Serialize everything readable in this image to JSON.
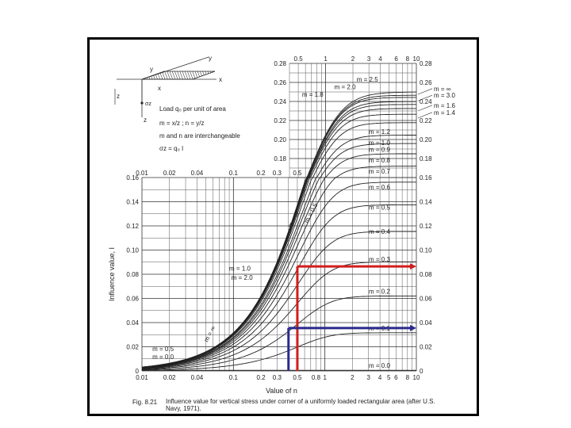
{
  "chart_data": {
    "type": "line",
    "title": "Influence value for vertical stress under corner of a uniformly loaded rectangular area (after U.S. Navy, 1971).",
    "figure_label": "Fig. 8.21",
    "xlabel": "Value of n",
    "ylabel": "Influence value, I",
    "x_scale": "log",
    "lower_panel": {
      "xlim": [
        0.01,
        10
      ],
      "ylim": [
        0,
        0.16
      ],
      "x_ticks": [
        "0.01",
        "0.02",
        "0.04",
        "0.1",
        "0.2",
        "0.3",
        "0.5",
        "0.8",
        "1",
        "2",
        "3",
        "4",
        "5",
        "6",
        "8",
        "10"
      ],
      "x_ticks_top": [
        "0.01",
        "0.02",
        "0.04",
        "0.1",
        "0.2",
        "0.3",
        "0.5"
      ],
      "y_ticks": [
        "0",
        "0.02",
        "0.04",
        "0.06",
        "0.08",
        "0.10",
        "0.12",
        "0.14",
        "0.16"
      ],
      "y_ticks_right": [
        "0",
        "0.02",
        "0.04",
        "0.06",
        "0.08",
        "0.10",
        "0.12",
        "0.14",
        "0.16",
        "0.18",
        "0.20",
        "0.22",
        "0.24",
        "0.26",
        "0.28"
      ]
    },
    "upper_panel": {
      "xlim": [
        0.4,
        10
      ],
      "ylim": [
        0.16,
        0.28
      ],
      "x_ticks_top": [
        "0.5",
        "1",
        "2",
        "3",
        "4",
        "6",
        "8",
        "10"
      ],
      "y_ticks": [
        "0.18",
        "0.20",
        "0.22",
        "0.24",
        "0.26",
        "0.28"
      ]
    },
    "series": [
      {
        "m": 0.0,
        "label": "m = 0.0",
        "asymptote": 0.0
      },
      {
        "m": 0.1,
        "label": "m = 0.1",
        "asymptote": 0.032
      },
      {
        "m": 0.2,
        "label": "m = 0.2",
        "asymptote": 0.062
      },
      {
        "m": 0.3,
        "label": "m = 0.3",
        "asymptote": 0.089
      },
      {
        "m": 0.4,
        "label": "m = 0.4",
        "asymptote": 0.112
      },
      {
        "m": 0.5,
        "label": "m = 0.5",
        "asymptote": 0.132
      },
      {
        "m": 0.6,
        "label": "m = 0.6",
        "asymptote": 0.148
      },
      {
        "m": 0.7,
        "label": "m = 0.7",
        "asymptote": 0.1625
      },
      {
        "m": 0.8,
        "label": "m = 0.8",
        "asymptote": 0.1745
      },
      {
        "m": 0.9,
        "label": "m = 0.9",
        "asymptote": 0.184
      },
      {
        "m": 1.0,
        "label": "m = 1.0",
        "asymptote": 0.1925
      },
      {
        "m": 1.2,
        "label": "m = 1.2",
        "asymptote": 0.205
      },
      {
        "m": 1.4,
        "label": "m = 1.4",
        "asymptote": 0.2135
      },
      {
        "m": 1.6,
        "label": "m = 1.6",
        "asymptote": 0.2195
      },
      {
        "m": 1.8,
        "label": "m = 1.8",
        "asymptote": 0.2237
      },
      {
        "m": 2.0,
        "label": "m = 2.0",
        "asymptote": 0.2325
      },
      {
        "m": 2.5,
        "label": "m = 2.5",
        "asymptote": 0.2405
      },
      {
        "m": 3.0,
        "label": "m = 3.0",
        "asymptote": 0.2445
      },
      {
        "m": 999,
        "label": "m = ∞",
        "asymptote": 0.25
      }
    ],
    "curve_labels_lower": [
      {
        "text": "m = 0.5",
        "n": 0.013,
        "I": 0.0165
      },
      {
        "text": "m = 0.0",
        "n": 0.013,
        "I": 0.01
      },
      {
        "text": "m = 1.0",
        "n": 0.09,
        "I": 0.083
      },
      {
        "text": "m = 2.0",
        "n": 0.095,
        "I": 0.0755
      }
    ],
    "curve_labels_left": [
      {
        "text": "m = 1.8",
        "n": 0.55,
        "I": 0.245
      },
      {
        "text": "m = 2.0",
        "n": 1.25,
        "I": 0.253
      },
      {
        "text": "m = 2.5",
        "n": 2.2,
        "I": 0.261
      }
    ],
    "curve_labels_right_edge": [
      {
        "text": "m = ∞",
        "I": 0.2535
      },
      {
        "text": "m = 3.0",
        "I": 0.2465
      },
      {
        "text": "m = 1.6",
        "I": 0.236
      },
      {
        "text": "m = 1.4",
        "I": 0.2285
      }
    ],
    "curve_labels_inner": [
      {
        "text": "m = 1.2",
        "I": 0.2085
      },
      {
        "text": "m = 1.0",
        "I": 0.1965
      },
      {
        "text": "m = 0.9",
        "I": 0.1895
      },
      {
        "text": "m = 0.8",
        "I": 0.1785
      },
      {
        "text": "m = 0.7",
        "I": 0.1665
      },
      {
        "text": "m = 0.6",
        "I": 0.152
      },
      {
        "text": "m = 0.5",
        "I": 0.1355
      },
      {
        "text": "m = 0.4",
        "I": 0.1155
      },
      {
        "text": "m = 0.3",
        "I": 0.0925
      },
      {
        "text": "m = 0.2",
        "I": 0.066
      },
      {
        "text": "m = 0.1",
        "I": 0.0355
      },
      {
        "text": "m = 0.0",
        "I": 0.0045
      }
    ],
    "rotated_labels": [
      {
        "text": "m = 0.5",
        "n": 0.65,
        "I": 0.122
      },
      {
        "text": "m = ∞",
        "n": 0.43,
        "I": 0.118
      },
      {
        "text": "m = ∞",
        "n": 0.052,
        "I": 0.0235
      }
    ],
    "annotation_lines": [
      {
        "color": "#d21c1c",
        "n": 0.5,
        "I": 0.0865
      },
      {
        "color": "#2a2a8c",
        "n": 0.4,
        "I": 0.0355
      }
    ],
    "legend_inset": {
      "line1": "Load q₀ per unit of area",
      "line2": "m = x/z ; n = y/z",
      "line3": "m and n are interchangeable",
      "line4": "σz = q₀ I",
      "axis_labels": [
        "y",
        "x",
        "z",
        "σz",
        "x",
        "y",
        "z"
      ]
    }
  },
  "colors": {
    "red_line": "#d21c1c",
    "blue_line": "#2a2a8c",
    "frame": "#000000"
  }
}
